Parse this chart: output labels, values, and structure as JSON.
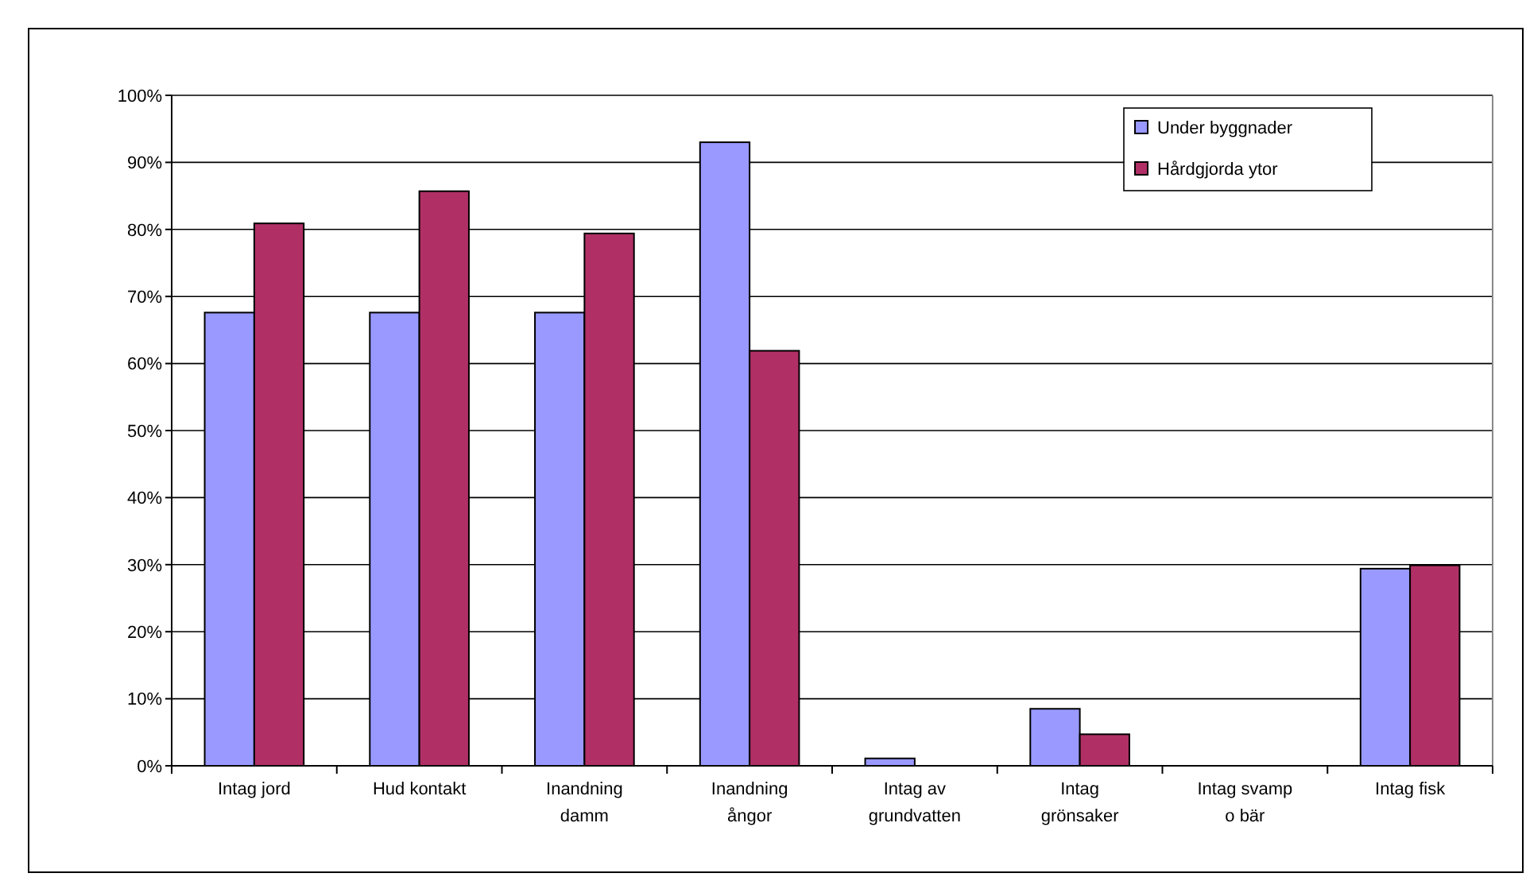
{
  "chart_data": {
    "type": "bar",
    "categories": [
      "Intag jord",
      "Hud kontakt",
      "Inandning damm",
      "Inandning ångor",
      "Intag av grundvatten",
      "Intag grönsaker",
      "Intag svamp o bär",
      "Intag fisk"
    ],
    "series": [
      {
        "name": "Under byggnader",
        "color": "#9999ff",
        "values": [
          67.6,
          67.6,
          67.6,
          93.0,
          1.1,
          8.5,
          0,
          29.4
        ]
      },
      {
        "name": "Hårdgjorda ytor",
        "color": "#b03066",
        "values": [
          80.9,
          85.7,
          79.4,
          61.9,
          0,
          4.7,
          0,
          29.9
        ]
      }
    ],
    "ylim": [
      0,
      100
    ],
    "yticks": [
      {
        "value": 0,
        "label": "0%"
      },
      {
        "value": 10,
        "label": "10%"
      },
      {
        "value": 20,
        "label": "20%"
      },
      {
        "value": 30,
        "label": "30%"
      },
      {
        "value": 40,
        "label": "40%"
      },
      {
        "value": 50,
        "label": "50%"
      },
      {
        "value": 60,
        "label": "60%"
      },
      {
        "value": 70,
        "label": "70%"
      },
      {
        "value": 80,
        "label": "80%"
      },
      {
        "value": 90,
        "label": "90%"
      },
      {
        "value": 100,
        "label": "100%"
      }
    ],
    "grid": "y",
    "legend": "top right"
  }
}
